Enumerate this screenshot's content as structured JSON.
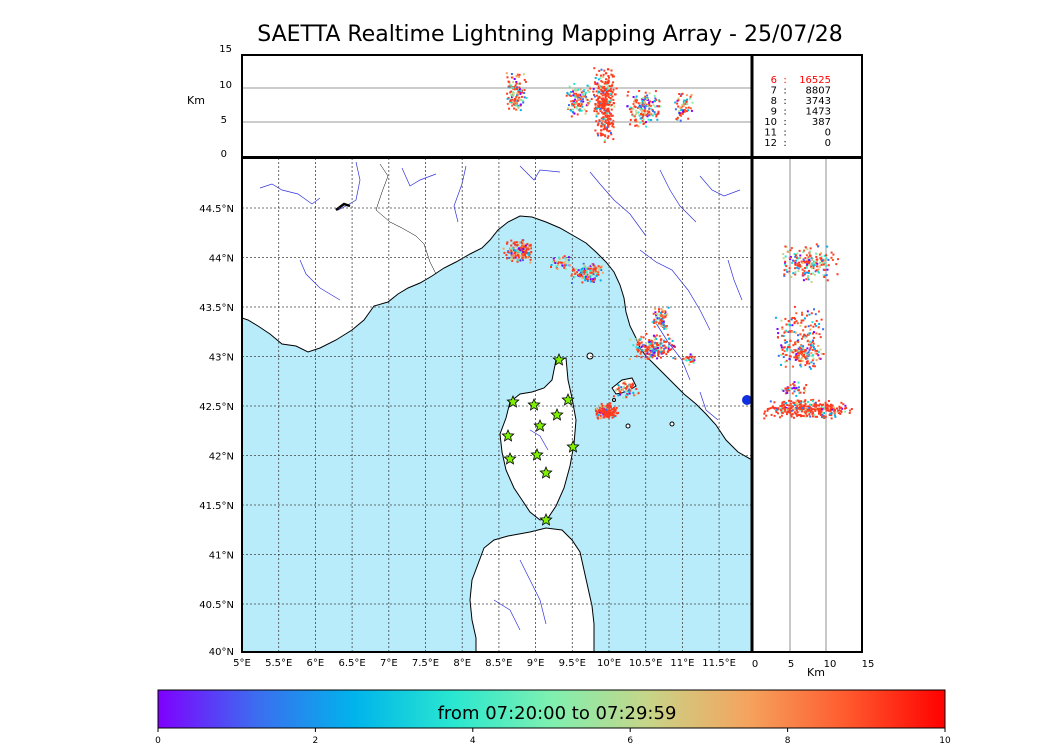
{
  "title": "SAETTA Realtime Lightning Mapping Array - 25/07/28",
  "top_panel": {
    "axis_unit": "Km",
    "y_ticks": [
      "15",
      "10",
      "5",
      "0"
    ],
    "station_counts": [
      {
        "n": "6",
        "value": "16525",
        "highlight": true
      },
      {
        "n": "7",
        "value": "8807",
        "highlight": false
      },
      {
        "n": "8",
        "value": "3743",
        "highlight": false
      },
      {
        "n": "9",
        "value": "1473",
        "highlight": false
      },
      {
        "n": "10",
        "value": "387",
        "highlight": false
      },
      {
        "n": "11",
        "value": "0",
        "highlight": false
      },
      {
        "n": "12",
        "value": "0",
        "highlight": false
      }
    ],
    "highlight_color": "#ff0000"
  },
  "map": {
    "lon_ticks": [
      "5°E",
      "5.5°E",
      "6°E",
      "6.5°E",
      "7°E",
      "7.5°E",
      "8°E",
      "8.5°E",
      "9°E",
      "9.5°E",
      "10°E",
      "10.5°E",
      "11°E",
      "11.5°E"
    ],
    "lat_ticks": [
      "44.5°N",
      "44°N",
      "43.5°N",
      "43°N",
      "42.5°N",
      "42°N",
      "41.5°N",
      "41°N",
      "40.5°N",
      "40°N"
    ],
    "sea_color": "#b9ecfb",
    "land_color": "#ffffff",
    "river_color": "#3333dd",
    "station_color": "#7ff000"
  },
  "side_panel": {
    "axis_unit": "Km",
    "x_ticks": [
      "0",
      "5",
      "10",
      "15"
    ]
  },
  "colorbar": {
    "label": "from 07:20:00 to 07:29:59",
    "ticks": [
      "0",
      "2",
      "4",
      "6",
      "8",
      "10"
    ],
    "stops": [
      "#7f00ff",
      "#3c6df0",
      "#00b4eb",
      "#29e7d0",
      "#7ff0b0",
      "#c8d488",
      "#f5a35e",
      "#ff5a2e",
      "#ff0000"
    ]
  }
}
